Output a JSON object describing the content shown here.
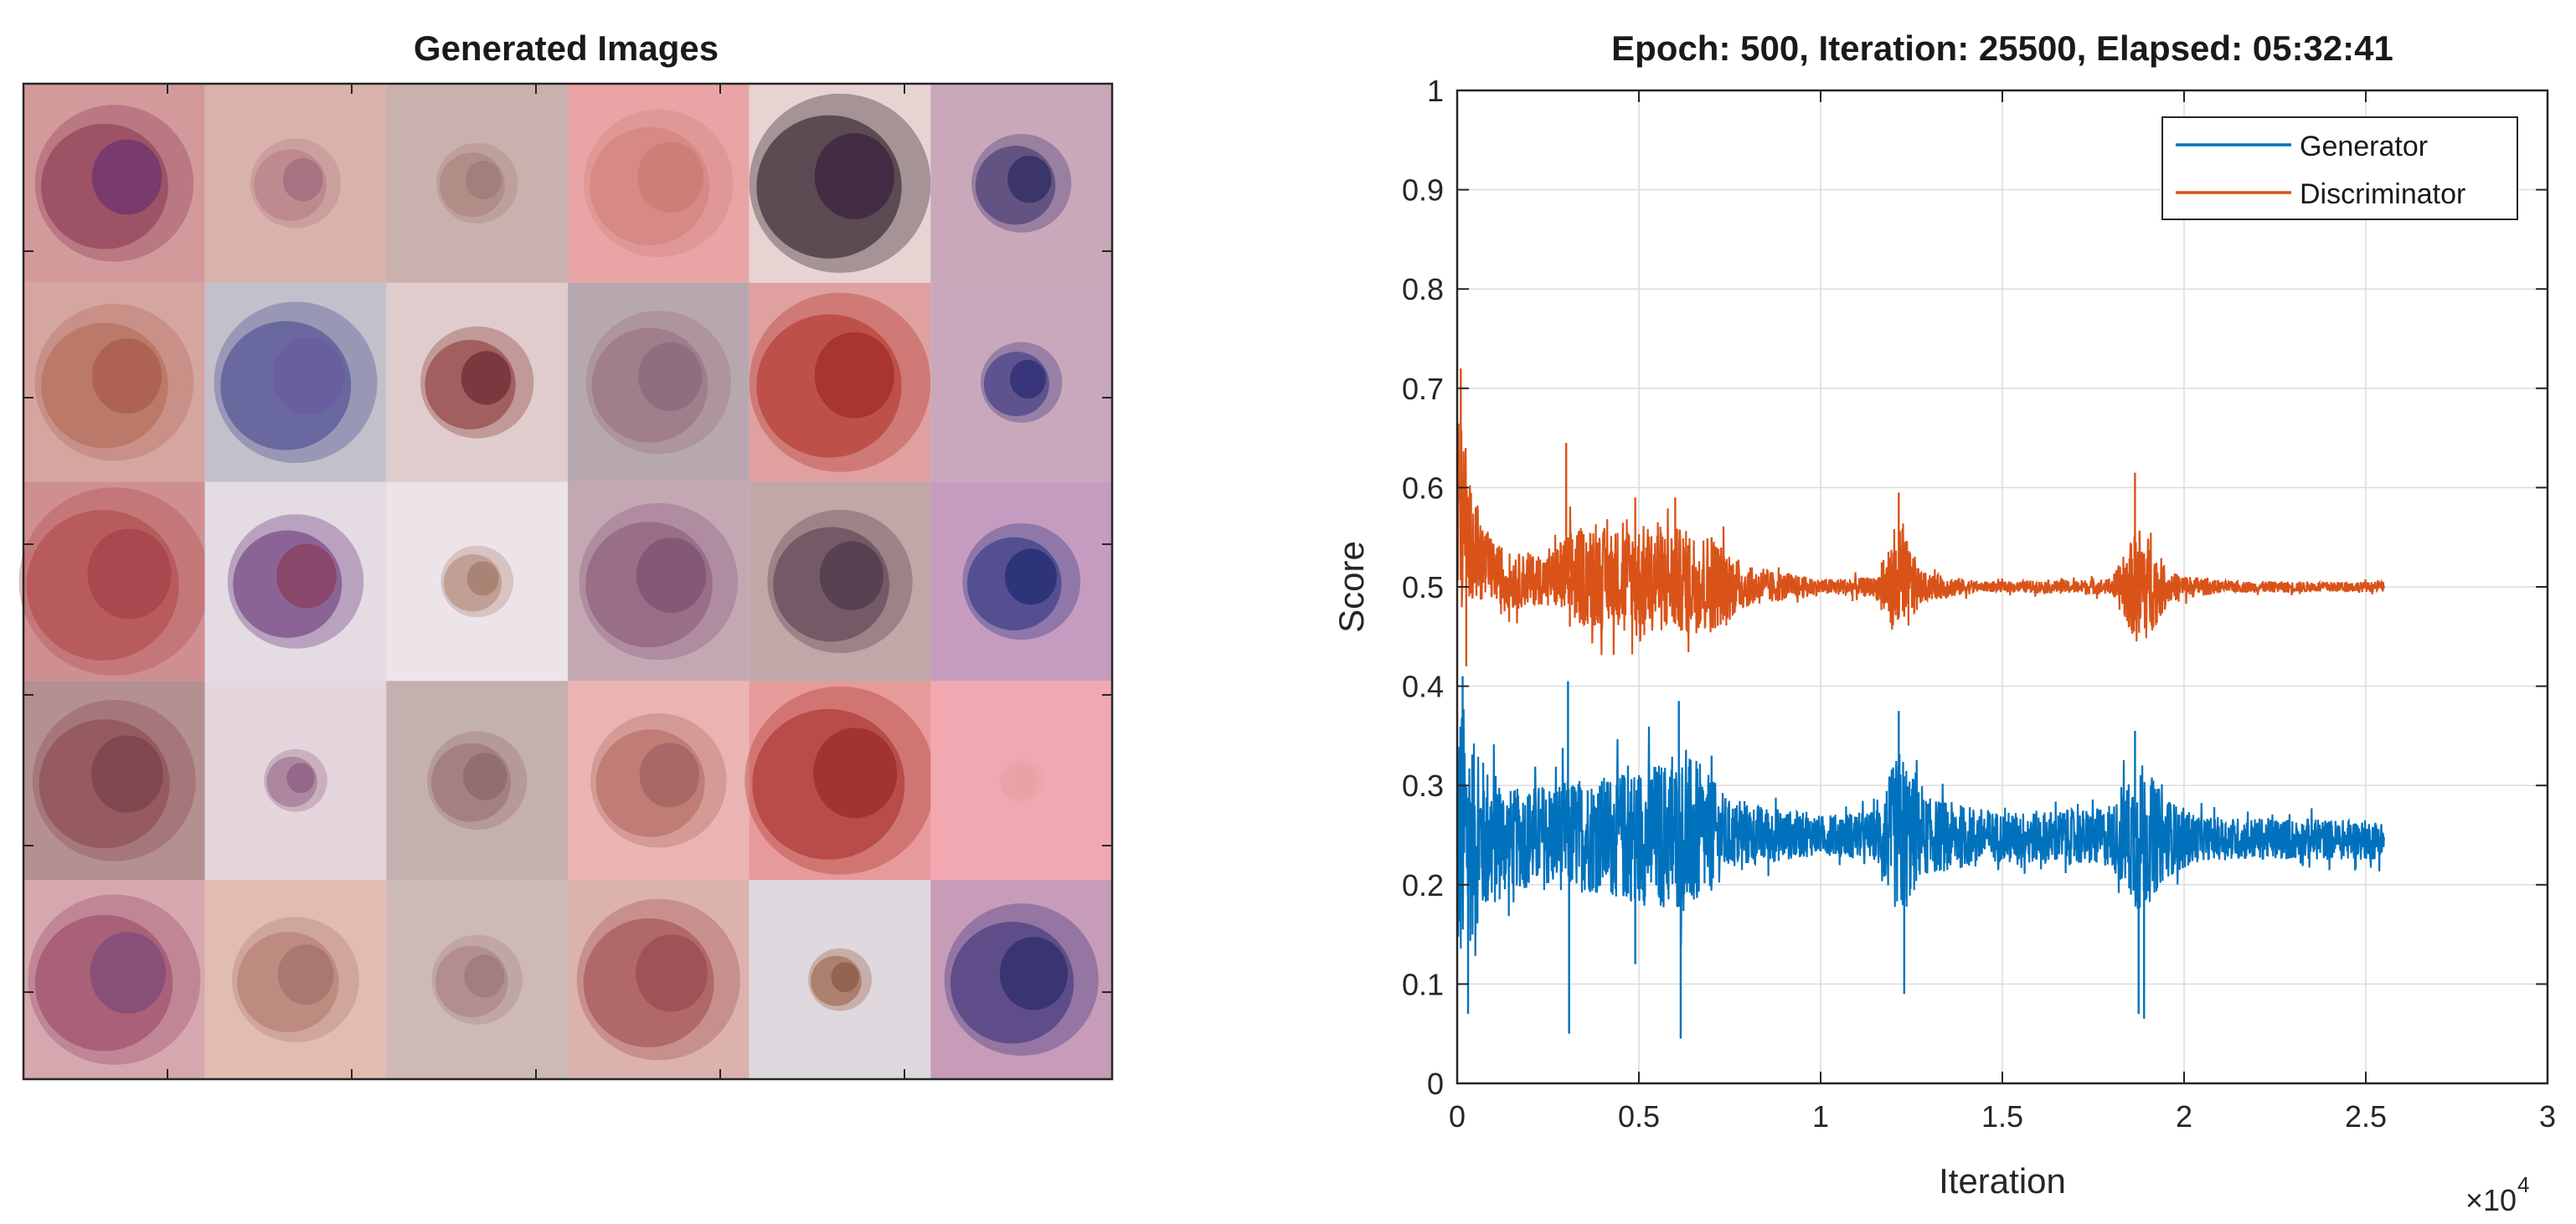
{
  "figure": {
    "left_panel": {
      "title": "Generated Images",
      "grid": {
        "rows": 5,
        "cols": 6
      },
      "tiles": [
        {
          "bg": "#d39a9c",
          "spot": "#8a3a52",
          "spot2": "#6a3070",
          "size": 0.35
        },
        {
          "bg": "#d9b2ac",
          "spot": "#b47c86",
          "spot2": "#9a6a7a",
          "size": 0.2
        },
        {
          "bg": "#c9b1ad",
          "spot": "#a8807c",
          "spot2": "#9a7a78",
          "size": 0.18
        },
        {
          "bg": "#e9a5a5",
          "spot": "#d0807a",
          "spot2": "#c77a70",
          "size": 0.33
        },
        {
          "bg": "#e6d4d3",
          "spot": "#2a1a25",
          "spot2": "#3a2040",
          "size": 0.4
        },
        {
          "bg": "#c9a8ba",
          "spot": "#3e3570",
          "spot2": "#2c2a60",
          "size": 0.22
        },
        {
          "bg": "#d5a59f",
          "spot": "#b36a58",
          "spot2": "#a85a48",
          "size": 0.35
        },
        {
          "bg": "#c3c0cb",
          "spot": "#4a4a90",
          "spot2": "#6a5aa0",
          "size": 0.36
        },
        {
          "bg": "#e0cccc",
          "spot": "#8a3a38",
          "spot2": "#6a2a30",
          "size": 0.25
        },
        {
          "bg": "#b7a8b0",
          "spot": "#9a7080",
          "spot2": "#8a6878",
          "size": 0.32
        },
        {
          "bg": "#e0a0a0",
          "spot": "#b0352c",
          "spot2": "#a02a25",
          "size": 0.4
        },
        {
          "bg": "#caa8bb",
          "spot": "#3a3580",
          "spot2": "#2a2a70",
          "size": 0.18
        },
        {
          "bg": "#cf8f92",
          "spot": "#b04a4a",
          "spot2": "#a24048",
          "size": 0.42
        },
        {
          "bg": "#e4dbe3",
          "spot": "#6a3a7a",
          "spot2": "#8a3a5a",
          "size": 0.3
        },
        {
          "bg": "#ede4e9",
          "spot": "#b08878",
          "spot2": "#a07868",
          "size": 0.16
        },
        {
          "bg": "#c3a8b4",
          "spot": "#8a5a78",
          "spot2": "#7a5070",
          "size": 0.35
        },
        {
          "bg": "#bfa8a7",
          "spot": "#5a4050",
          "spot2": "#4a3848",
          "size": 0.32
        },
        {
          "bg": "#c59cc0",
          "spot": "#2c3580",
          "spot2": "#202a70",
          "size": 0.26
        },
        {
          "bg": "#b49093",
          "spot": "#8a4a50",
          "spot2": "#7a4048",
          "size": 0.36
        },
        {
          "bg": "#e4d6dc",
          "spot": "#9a6a8a",
          "spot2": "#8a5a80",
          "size": 0.14
        },
        {
          "bg": "#c5b0b0",
          "spot": "#9a7070",
          "spot2": "#8a6868",
          "size": 0.22
        },
        {
          "bg": "#eab4b2",
          "spot": "#b06a60",
          "spot2": "#a06060",
          "size": 0.3
        },
        {
          "bg": "#e69a9a",
          "spot": "#a8302c",
          "spot2": "#982a28",
          "size": 0.42
        },
        {
          "bg": "#f2a8b0",
          "spot": "#e8a0a6",
          "spot2": "#e8a0a6",
          "size": 0.1
        },
        {
          "bg": "#d5a7ae",
          "spot": "#9a4a68",
          "spot2": "#7a4878",
          "size": 0.38
        },
        {
          "bg": "#e0bdb0",
          "spot": "#b07a70",
          "spot2": "#a47068",
          "size": 0.28
        },
        {
          "bg": "#cdbab7",
          "spot": "#a88080",
          "spot2": "#9a7878",
          "size": 0.2
        },
        {
          "bg": "#dcb2ae",
          "spot": "#a05050",
          "spot2": "#9a4a50",
          "size": 0.36
        },
        {
          "bg": "#dfd8de",
          "spot": "#9a6048",
          "spot2": "#8a5a40",
          "size": 0.14
        },
        {
          "bg": "#c69cb8",
          "spot": "#3a3278",
          "spot2": "#2a2a68",
          "size": 0.34
        }
      ]
    },
    "chart_data": {
      "type": "line",
      "title": "Epoch: 500, Iteration: 25500, Elapsed: 05:32:41",
      "xlabel": "Iteration",
      "ylabel": "Score",
      "xlim": [
        0,
        30000
      ],
      "ylim": [
        0,
        1
      ],
      "x_exponent_label": "×10",
      "x_exponent_power": "4",
      "xticks": [
        0,
        5000,
        10000,
        15000,
        20000,
        25000,
        30000
      ],
      "xtick_labels": [
        "0",
        "0.5",
        "1",
        "1.5",
        "2",
        "2.5",
        "3"
      ],
      "yticks": [
        0,
        0.1,
        0.2,
        0.3,
        0.4,
        0.5,
        0.6,
        0.7,
        0.8,
        0.9,
        1
      ],
      "ytick_labels": [
        "0",
        "0.1",
        "0.2",
        "0.3",
        "0.4",
        "0.5",
        "0.6",
        "0.7",
        "0.8",
        "0.9",
        "1"
      ],
      "grid": true,
      "legend_position": "top-right",
      "series": [
        {
          "name": "Generator",
          "color": "#0072bd",
          "center": [
            [
              0,
              0.25
            ],
            [
              1000,
              0.245
            ],
            [
              3000,
              0.25
            ],
            [
              6000,
              0.25
            ],
            [
              10000,
              0.25
            ],
            [
              25500,
              0.245
            ]
          ],
          "spread": [
            [
              0,
              0.16
            ],
            [
              500,
              0.09
            ],
            [
              1500,
              0.05
            ],
            [
              2500,
              0.055
            ],
            [
              4000,
              0.06
            ],
            [
              5500,
              0.075
            ],
            [
              6500,
              0.08
            ],
            [
              7500,
              0.035
            ],
            [
              10000,
              0.02
            ],
            [
              11500,
              0.025
            ],
            [
              12200,
              0.09
            ],
            [
              12800,
              0.04
            ],
            [
              15000,
              0.025
            ],
            [
              18000,
              0.03
            ],
            [
              18800,
              0.08
            ],
            [
              19500,
              0.04
            ],
            [
              20500,
              0.022
            ],
            [
              25500,
              0.02
            ]
          ],
          "spikes": [
            [
              150,
              0.41
            ],
            [
              300,
              0.07
            ],
            [
              2000,
              0.29
            ],
            [
              3050,
              0.405
            ],
            [
              3080,
              0.05
            ],
            [
              4700,
              0.32
            ],
            [
              4900,
              0.12
            ],
            [
              6100,
              0.385
            ],
            [
              6150,
              0.045
            ],
            [
              7000,
              0.33
            ],
            [
              12150,
              0.375
            ],
            [
              12300,
              0.09
            ],
            [
              18650,
              0.355
            ],
            [
              18750,
              0.07
            ],
            [
              18900,
              0.065
            ]
          ]
        },
        {
          "name": "Discriminator",
          "color": "#d95319",
          "center": [
            [
              0,
              0.58
            ],
            [
              300,
              0.55
            ],
            [
              800,
              0.52
            ],
            [
              1500,
              0.505
            ],
            [
              3000,
              0.51
            ],
            [
              5000,
              0.51
            ],
            [
              8000,
              0.5
            ],
            [
              25500,
              0.5
            ]
          ],
          "spread": [
            [
              0,
              0.12
            ],
            [
              300,
              0.06
            ],
            [
              1000,
              0.03
            ],
            [
              2500,
              0.025
            ],
            [
              3200,
              0.05
            ],
            [
              4500,
              0.05
            ],
            [
              5500,
              0.055
            ],
            [
              7000,
              0.05
            ],
            [
              8000,
              0.02
            ],
            [
              10000,
              0.008
            ],
            [
              11500,
              0.01
            ],
            [
              12200,
              0.06
            ],
            [
              12800,
              0.015
            ],
            [
              14500,
              0.005
            ],
            [
              18000,
              0.008
            ],
            [
              18800,
              0.065
            ],
            [
              19600,
              0.015
            ],
            [
              21000,
              0.006
            ],
            [
              25500,
              0.005
            ]
          ],
          "spikes": [
            [
              100,
              0.72
            ],
            [
              250,
              0.42
            ],
            [
              3000,
              0.645
            ],
            [
              3100,
              0.46
            ],
            [
              4900,
              0.59
            ],
            [
              6000,
              0.59
            ],
            [
              7000,
              0.55
            ],
            [
              12150,
              0.595
            ],
            [
              12300,
              0.47
            ],
            [
              18650,
              0.615
            ],
            [
              18800,
              0.47
            ]
          ]
        }
      ]
    }
  }
}
